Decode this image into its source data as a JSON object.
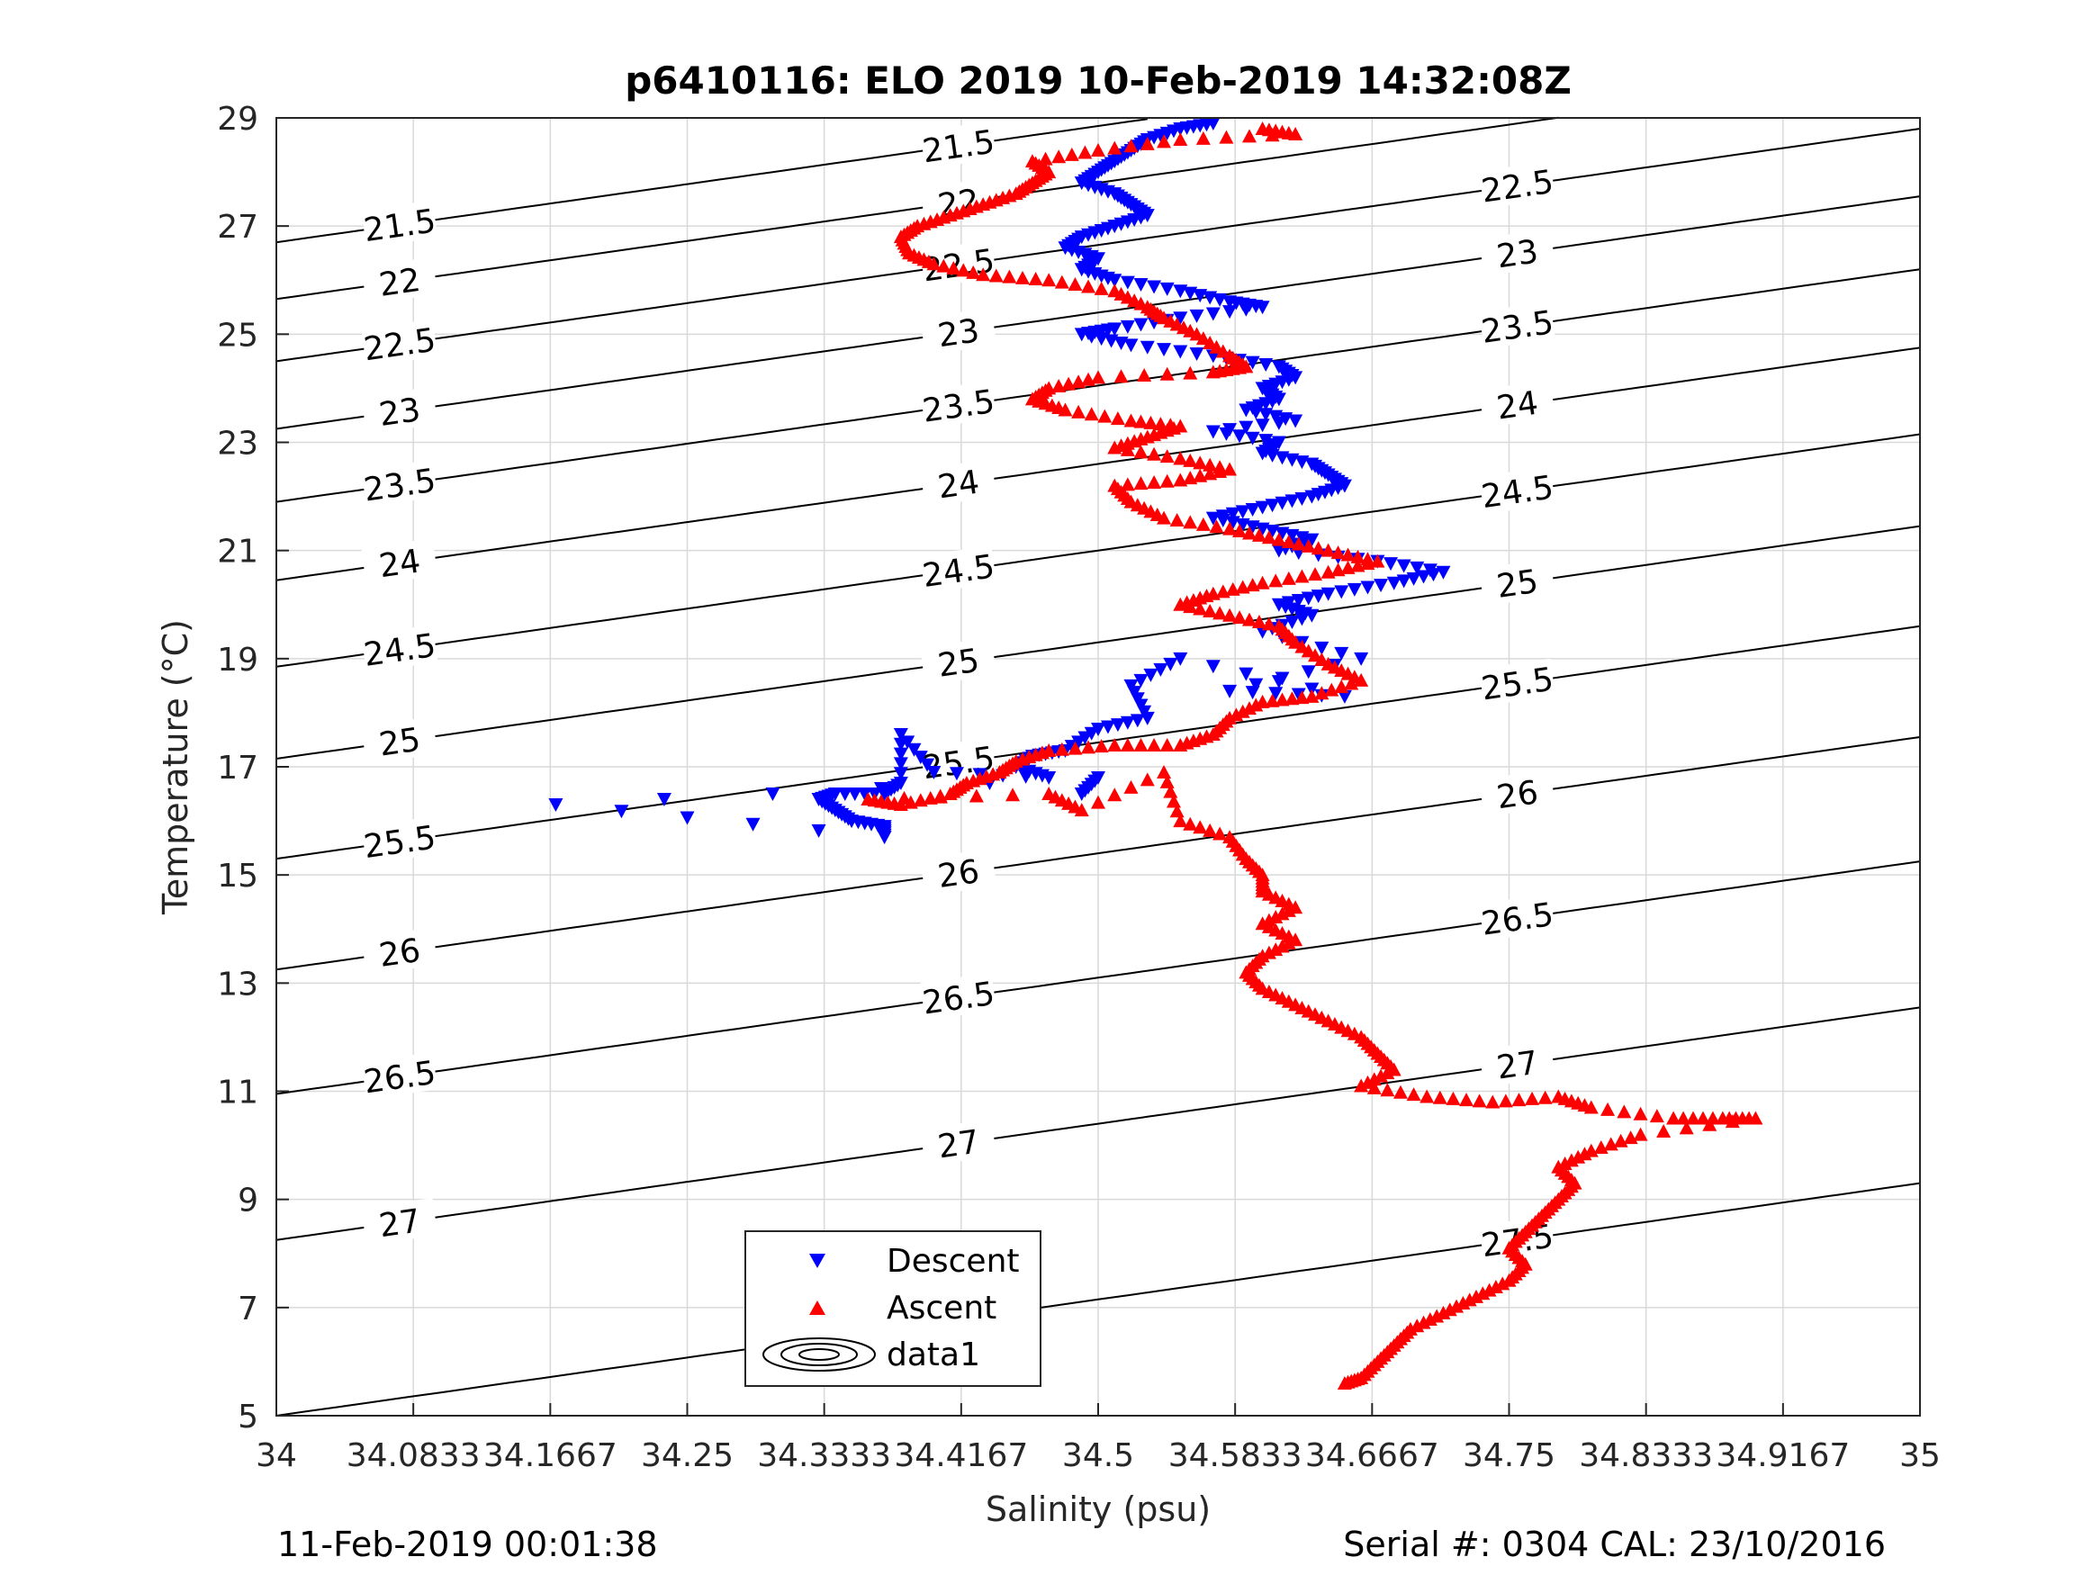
{
  "chart_data": {
    "type": "scatter",
    "title": "p6410116: ELO 2019 10-Feb-2019 14:32:08Z",
    "xlabel": "Salinity (psu)",
    "ylabel": "Temperature (°C)",
    "xlim": [
      34,
      35
    ],
    "ylim": [
      5,
      29
    ],
    "x_ticks": [
      "34",
      "34.0833",
      "34.1667",
      "34.25",
      "34.3333",
      "34.4167",
      "34.5",
      "34.5833",
      "34.6667",
      "34.75",
      "34.8333",
      "34.9167",
      "35"
    ],
    "y_ticks": [
      "5",
      "7",
      "9",
      "11",
      "13",
      "15",
      "17",
      "19",
      "21",
      "23",
      "25",
      "27",
      "29"
    ],
    "grid": true,
    "legend": {
      "placement": "bottom-center",
      "entries": [
        "Descent",
        "Ascent",
        "data1"
      ]
    },
    "colors": {
      "descent": "#0000ff",
      "ascent": "#ff0000",
      "contour": "#000000",
      "grid": "#d9d9d9"
    },
    "series": [
      {
        "name": "Descent",
        "marker": "triangle-down",
        "points": [
          [
            34.57,
            28.9
          ],
          [
            34.55,
            28.8
          ],
          [
            34.53,
            28.6
          ],
          [
            34.52,
            28.4
          ],
          [
            34.51,
            28.2
          ],
          [
            34.5,
            28.0
          ],
          [
            34.49,
            27.8
          ],
          [
            34.51,
            27.6
          ],
          [
            34.52,
            27.4
          ],
          [
            34.53,
            27.2
          ],
          [
            34.51,
            27.0
          ],
          [
            34.49,
            26.8
          ],
          [
            34.48,
            26.6
          ],
          [
            34.5,
            26.4
          ],
          [
            34.49,
            26.2
          ],
          [
            34.51,
            26.0
          ],
          [
            34.55,
            25.8
          ],
          [
            34.58,
            25.6
          ],
          [
            34.6,
            25.5
          ],
          [
            34.55,
            25.3
          ],
          [
            34.51,
            25.1
          ],
          [
            34.49,
            25.0
          ],
          [
            34.52,
            24.8
          ],
          [
            34.57,
            24.6
          ],
          [
            34.61,
            24.4
          ],
          [
            34.62,
            24.2
          ],
          [
            34.6,
            24.0
          ],
          [
            34.61,
            23.8
          ],
          [
            34.59,
            23.6
          ],
          [
            34.62,
            23.4
          ],
          [
            34.57,
            23.2
          ],
          [
            34.61,
            23.0
          ],
          [
            34.6,
            22.8
          ],
          [
            34.63,
            22.6
          ],
          [
            34.64,
            22.4
          ],
          [
            34.65,
            22.2
          ],
          [
            34.63,
            22.0
          ],
          [
            34.6,
            21.8
          ],
          [
            34.57,
            21.6
          ],
          [
            34.6,
            21.4
          ],
          [
            34.63,
            21.2
          ],
          [
            34.61,
            21.0
          ],
          [
            34.67,
            20.8
          ],
          [
            34.71,
            20.6
          ],
          [
            34.68,
            20.4
          ],
          [
            34.64,
            20.2
          ],
          [
            34.61,
            20.0
          ],
          [
            34.63,
            19.8
          ],
          [
            34.6,
            19.5
          ],
          [
            34.66,
            19.0
          ],
          [
            34.58,
            18.4
          ],
          [
            34.65,
            18.3
          ],
          [
            34.55,
            19.0
          ],
          [
            34.52,
            18.5
          ],
          [
            34.53,
            17.9
          ],
          [
            34.5,
            17.7
          ],
          [
            34.48,
            17.3
          ],
          [
            34.46,
            17.2
          ],
          [
            34.45,
            17.0
          ],
          [
            34.47,
            16.8
          ],
          [
            34.4,
            16.9
          ],
          [
            34.38,
            17.6
          ],
          [
            34.38,
            16.7
          ],
          [
            34.37,
            16.5
          ],
          [
            34.34,
            16.5
          ],
          [
            34.33,
            16.4
          ],
          [
            34.34,
            16.2
          ],
          [
            34.35,
            16.0
          ],
          [
            34.37,
            15.9
          ],
          [
            34.37,
            15.7
          ],
          [
            34.17,
            16.3
          ],
          [
            34.5,
            16.8
          ],
          [
            34.49,
            16.5
          ]
        ]
      },
      {
        "name": "Ascent",
        "marker": "triangle-up",
        "points": [
          [
            34.6,
            28.8
          ],
          [
            34.62,
            28.7
          ],
          [
            34.55,
            28.6
          ],
          [
            34.5,
            28.4
          ],
          [
            34.46,
            28.2
          ],
          [
            34.47,
            28.0
          ],
          [
            34.46,
            27.8
          ],
          [
            34.45,
            27.6
          ],
          [
            34.43,
            27.4
          ],
          [
            34.41,
            27.2
          ],
          [
            34.39,
            27.0
          ],
          [
            34.38,
            26.8
          ],
          [
            34.385,
            26.5
          ],
          [
            34.4,
            26.3
          ],
          [
            34.43,
            26.1
          ],
          [
            34.47,
            26.0
          ],
          [
            34.51,
            25.8
          ],
          [
            34.53,
            25.5
          ],
          [
            34.54,
            25.3
          ],
          [
            34.56,
            25.0
          ],
          [
            34.58,
            24.6
          ],
          [
            34.59,
            24.4
          ],
          [
            34.57,
            24.3
          ],
          [
            34.5,
            24.2
          ],
          [
            34.47,
            24.0
          ],
          [
            34.46,
            23.8
          ],
          [
            34.48,
            23.6
          ],
          [
            34.52,
            23.4
          ],
          [
            34.55,
            23.3
          ],
          [
            34.53,
            23.1
          ],
          [
            34.51,
            22.9
          ],
          [
            34.55,
            22.7
          ],
          [
            34.58,
            22.5
          ],
          [
            34.55,
            22.3
          ],
          [
            34.51,
            22.2
          ],
          [
            34.52,
            21.9
          ],
          [
            34.54,
            21.6
          ],
          [
            34.58,
            21.4
          ],
          [
            34.61,
            21.2
          ],
          [
            34.64,
            21.0
          ],
          [
            34.67,
            20.8
          ],
          [
            34.64,
            20.6
          ],
          [
            34.6,
            20.4
          ],
          [
            34.57,
            20.2
          ],
          [
            34.55,
            20.0
          ],
          [
            34.58,
            19.8
          ],
          [
            34.61,
            19.6
          ],
          [
            34.62,
            19.3
          ],
          [
            34.64,
            18.9
          ],
          [
            34.66,
            18.6
          ],
          [
            34.63,
            18.3
          ],
          [
            34.6,
            18.2
          ],
          [
            34.58,
            17.9
          ],
          [
            34.57,
            17.6
          ],
          [
            34.55,
            17.4
          ],
          [
            34.51,
            17.4
          ],
          [
            34.47,
            17.3
          ],
          [
            34.45,
            17.1
          ],
          [
            34.44,
            16.9
          ],
          [
            34.42,
            16.7
          ],
          [
            34.41,
            16.5
          ],
          [
            34.38,
            16.3
          ],
          [
            34.36,
            16.4
          ],
          [
            34.47,
            16.5
          ],
          [
            34.49,
            16.2
          ],
          [
            34.54,
            16.9
          ],
          [
            34.55,
            16.0
          ],
          [
            34.58,
            15.7
          ],
          [
            34.59,
            15.3
          ],
          [
            34.6,
            15.0
          ],
          [
            34.6,
            14.7
          ],
          [
            34.62,
            14.4
          ],
          [
            34.6,
            14.1
          ],
          [
            34.62,
            13.8
          ],
          [
            34.6,
            13.5
          ],
          [
            34.59,
            13.2
          ],
          [
            34.6,
            12.9
          ],
          [
            34.62,
            12.6
          ],
          [
            34.64,
            12.3
          ],
          [
            34.66,
            12.0
          ],
          [
            34.67,
            11.7
          ],
          [
            34.68,
            11.4
          ],
          [
            34.66,
            11.1
          ],
          [
            34.7,
            10.9
          ],
          [
            34.74,
            10.8
          ],
          [
            34.78,
            10.9
          ],
          [
            34.8,
            10.7
          ],
          [
            34.85,
            10.5
          ],
          [
            34.88,
            10.5
          ],
          [
            34.9,
            10.5
          ],
          [
            34.83,
            10.2
          ],
          [
            34.8,
            9.9
          ],
          [
            34.78,
            9.6
          ],
          [
            34.79,
            9.3
          ],
          [
            34.78,
            9.0
          ],
          [
            34.77,
            8.7
          ],
          [
            34.76,
            8.4
          ],
          [
            34.75,
            8.1
          ],
          [
            34.76,
            7.8
          ],
          [
            34.75,
            7.5
          ],
          [
            34.73,
            7.2
          ],
          [
            34.71,
            6.9
          ],
          [
            34.69,
            6.6
          ],
          [
            34.68,
            6.3
          ],
          [
            34.67,
            6.0
          ],
          [
            34.66,
            5.7
          ],
          [
            34.65,
            5.6
          ]
        ]
      }
    ],
    "isopycnal_labels": [
      "21.5",
      "22",
      "22.5",
      "23",
      "23.5",
      "24",
      "24.5",
      "25",
      "25.5",
      "26",
      "26.5",
      "27",
      "27.5"
    ]
  },
  "footer": {
    "date": "11-Feb-2019 00:01:38",
    "serial": "Serial #: 0304  CAL: 23/10/2016"
  }
}
